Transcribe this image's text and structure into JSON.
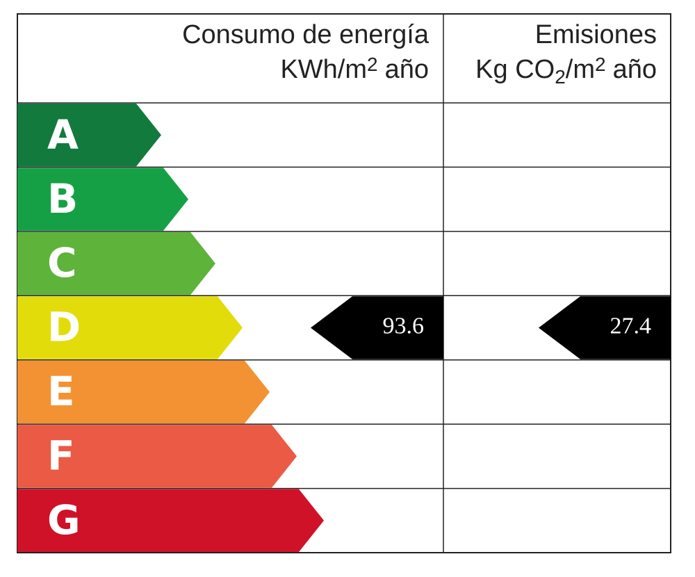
{
  "header": {
    "energy_title": "Consumo de energía",
    "energy_unit": [
      "KWh/m",
      "2",
      "año"
    ],
    "emissions_title": "Emisiones",
    "emissions_unit": [
      "Kg CO",
      "2",
      "/m",
      "2",
      "año"
    ]
  },
  "scale": [
    {
      "letter": "A",
      "color": "#127a3c"
    },
    {
      "letter": "B",
      "color": "#16a046"
    },
    {
      "letter": "C",
      "color": "#5eb33a"
    },
    {
      "letter": "D",
      "color": "#e2dc0b"
    },
    {
      "letter": "E",
      "color": "#f39232"
    },
    {
      "letter": "F",
      "color": "#ea5a44"
    },
    {
      "letter": "G",
      "color": "#cf1228"
    }
  ],
  "rating": {
    "energy": 93.6,
    "emissions": 27.4,
    "color": "#000000"
  }
}
